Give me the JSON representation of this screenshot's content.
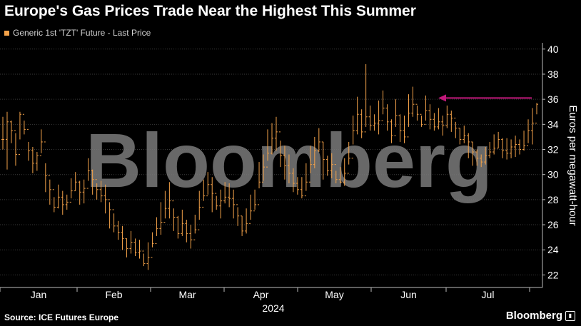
{
  "page": {
    "title": "Europe's Gas Prices Trade Near the Highest This Summer",
    "source": "Source: ICE Futures Europe",
    "logo_text": "Bloomberg",
    "watermark": "Bloomberg"
  },
  "colors": {
    "background": "#000000",
    "series": "#f5a34a",
    "arrow": "#c0187a",
    "grid": "#3a3a3a",
    "text": "#ffffff",
    "watermark": "#7a7a7a"
  },
  "chart_data": {
    "type": "line",
    "series": [
      {
        "name": "Generic 1st 'TZT' Future - Last Price",
        "style": "ohlc-ticks",
        "values": [
          32.8,
          34.2,
          33.5,
          31.6,
          34.8,
          33.6,
          31.9,
          30.9,
          31.5,
          32.6,
          29.9,
          28.8,
          27.4,
          28.2,
          27.6,
          27.8,
          28.7,
          29.4,
          28.6,
          28.9,
          30.3,
          29.6,
          28.8,
          28.3,
          28.0,
          27.2,
          25.9,
          25.4,
          24.9,
          24.1,
          24.6,
          23.8,
          23.9,
          22.9,
          23.4,
          24.5,
          25.7,
          26.2,
          27.3,
          27.9,
          26.6,
          25.3,
          26.1,
          25.3,
          24.8,
          25.6,
          27.4,
          28.3,
          29.2,
          28.5,
          27.5,
          27.9,
          28.2,
          28.1,
          27.6,
          26.7,
          25.5,
          26.1,
          27.1,
          27.6,
          29.4,
          30.6,
          31.7,
          32.9,
          33.4,
          31.5,
          30.7,
          30.1,
          29.3,
          28.8,
          28.3,
          29.4,
          30.8,
          31.9,
          32.6,
          31.2,
          30.3,
          30.8,
          29.6,
          29.4,
          30.1,
          31.3,
          33.5,
          34.8,
          33.4,
          34.6,
          33.9,
          34.1,
          34.3,
          35.3,
          34.2,
          33.1,
          34.7,
          33.5,
          33.0,
          34.9,
          35.6,
          34.8,
          34.0,
          35.1,
          34.4,
          33.8,
          34.2,
          33.9,
          34.8,
          34.5,
          33.7,
          32.8,
          33.1,
          32.6,
          31.8,
          31.3,
          31.0,
          31.5,
          31.8,
          32.1,
          32.8,
          31.9,
          31.7,
          32.2,
          32.4,
          32.0,
          32.3,
          33.5,
          34.1,
          35.6
        ],
        "highs": [
          34.6,
          35.0,
          34.3,
          33.3,
          35.0,
          34.3,
          32.6,
          32.2,
          31.8,
          33.6,
          30.9,
          29.6,
          28.2,
          29.2,
          28.7,
          28.4,
          29.7,
          30.2,
          29.5,
          29.6,
          31.3,
          30.4,
          29.3,
          29.5,
          29.2,
          27.8,
          26.9,
          26.3,
          25.9,
          24.9,
          25.5,
          24.9,
          24.8,
          23.7,
          24.6,
          25.4,
          26.6,
          27.8,
          28.7,
          29.4,
          27.3,
          26.7,
          27.2,
          26.4,
          26.0,
          26.8,
          28.7,
          29.6,
          30.2,
          29.8,
          28.3,
          28.8,
          29.4,
          29.3,
          28.8,
          27.4,
          26.7,
          27.3,
          28.4,
          28.8,
          31.0,
          31.6,
          33.6,
          34.1,
          34.6,
          32.7,
          32.3,
          31.6,
          30.5,
          29.8,
          29.8,
          30.9,
          32.3,
          33.0,
          33.7,
          32.6,
          31.5,
          31.7,
          30.3,
          30.6,
          31.3,
          32.6,
          34.7,
          36.2,
          35.2,
          38.8,
          35.5,
          34.8,
          35.9,
          36.7,
          35.6,
          34.4,
          36.0,
          34.8,
          34.7,
          36.4,
          37.0,
          35.5,
          34.7,
          36.3,
          35.6,
          34.9,
          35.3,
          34.7,
          35.5,
          35.1,
          34.2,
          33.7,
          33.9,
          33.3,
          32.6,
          32.0,
          31.6,
          32.2,
          32.6,
          33.2,
          33.4,
          32.9,
          32.9,
          32.8,
          33.1,
          32.8,
          33.5,
          34.4,
          35.3,
          35.7
        ],
        "lows": [
          32.0,
          30.4,
          32.5,
          30.7,
          32.8,
          33.2,
          31.1,
          30.1,
          30.3,
          31.7,
          28.6,
          27.6,
          27.0,
          27.3,
          26.8,
          27.2,
          28.1,
          28.7,
          27.6,
          27.7,
          29.5,
          28.4,
          28.0,
          27.8,
          26.9,
          25.7,
          25.4,
          24.8,
          24.0,
          23.4,
          23.7,
          23.5,
          23.3,
          22.7,
          22.4,
          24.2,
          25.1,
          25.2,
          26.5,
          26.5,
          25.5,
          24.9,
          25.1,
          24.6,
          24.1,
          25.3,
          26.4,
          27.9,
          28.4,
          27.0,
          27.2,
          26.5,
          27.7,
          27.4,
          26.5,
          25.9,
          25.1,
          25.3,
          26.4,
          27.2,
          28.9,
          29.5,
          31.1,
          31.6,
          31.9,
          30.6,
          29.6,
          29.3,
          28.6,
          28.4,
          28.1,
          28.7,
          30.1,
          30.5,
          31.8,
          29.6,
          29.9,
          29.7,
          29.3,
          29.3,
          29.1,
          30.8,
          32.4,
          33.2,
          32.9,
          33.8,
          33.5,
          33.5,
          33.2,
          34.8,
          33.5,
          32.5,
          33.8,
          32.6,
          32.5,
          33.8,
          34.6,
          34.3,
          33.8,
          34.3,
          33.6,
          33.5,
          33.6,
          33.1,
          33.7,
          33.4,
          32.9,
          32.4,
          32.5,
          31.3,
          30.7,
          30.7,
          30.6,
          30.8,
          31.3,
          31.6,
          32.1,
          31.3,
          31.2,
          31.3,
          31.4,
          31.6,
          31.9,
          32.5,
          32.4,
          34.8
        ]
      }
    ],
    "x_labels": [
      "Jan",
      "Feb",
      "Mar",
      "Apr",
      "May",
      "Jun",
      "Jul"
    ],
    "x_year_label": "2024",
    "x_range": [
      "2024-01-01",
      "2024-07-31"
    ],
    "ylabel": "Euros per megawatt-hour",
    "yticks": [
      22,
      24,
      26,
      28,
      30,
      32,
      34,
      36,
      38,
      40
    ],
    "ylim": [
      21,
      40.5
    ],
    "y_axis_position": "right",
    "grid": true,
    "legend_position": "top-left",
    "annotations": [
      {
        "type": "arrow",
        "direction": "left",
        "y_value": 36.1
      }
    ]
  }
}
